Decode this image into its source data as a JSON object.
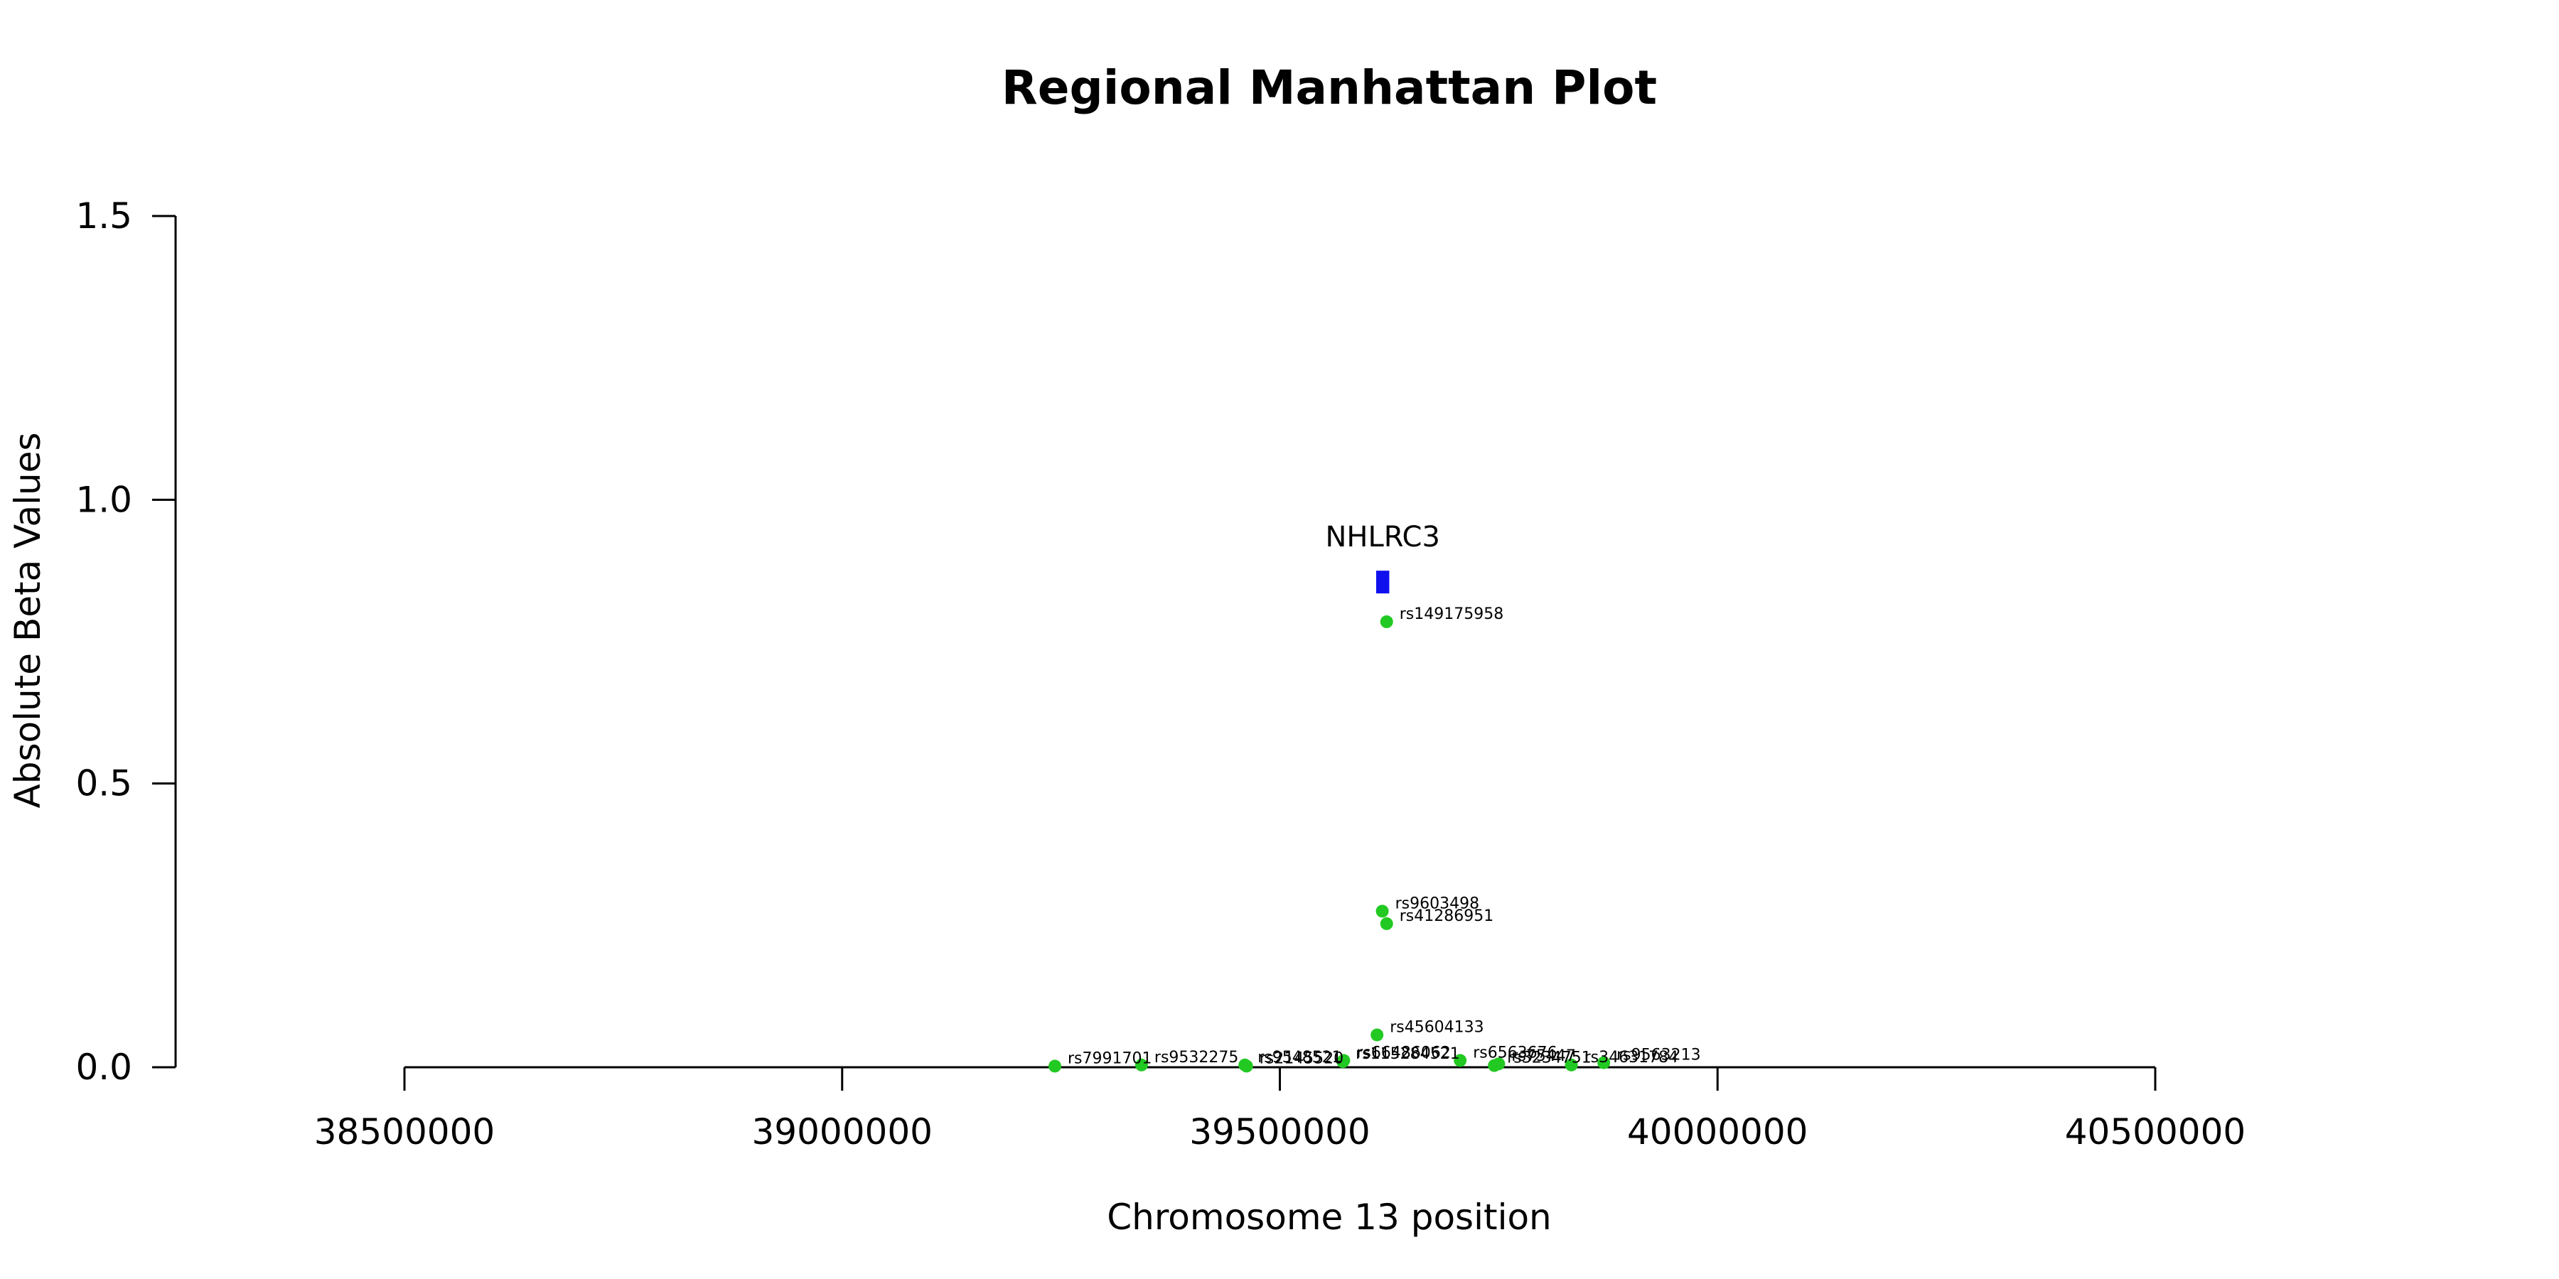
{
  "chart_data": {
    "type": "scatter",
    "title": "Regional Manhattan Plot",
    "xlabel": "Chromosome 13 position",
    "ylabel": "Absolute Beta Values",
    "xlim": [
      38500000,
      40500000
    ],
    "ylim": [
      0,
      1.5
    ],
    "x_ticks": [
      "38500000",
      "39000000",
      "39500000",
      "40000000",
      "40500000"
    ],
    "y_ticks": [
      "0.0",
      "0.5",
      "1.0",
      "1.5"
    ],
    "grid": false,
    "point_color": "#22c922",
    "gene_color": "#1010ee",
    "gene": {
      "name": "NHLRC3",
      "start": 39610000,
      "end": 39625000,
      "y": 0.855
    },
    "points": [
      {
        "id": "rs149175958",
        "x": 39622000,
        "y": 0.785
      },
      {
        "id": "rs9603498",
        "x": 39617000,
        "y": 0.275
      },
      {
        "id": "rs41286951",
        "x": 39622000,
        "y": 0.253
      },
      {
        "id": "rs45604133",
        "x": 39611000,
        "y": 0.057
      },
      {
        "id": "rs6563676",
        "x": 39706000,
        "y": 0.012
      },
      {
        "id": "rs66486062",
        "x": 39573000,
        "y": 0.012
      },
      {
        "id": "rs115284521",
        "x": 39572000,
        "y": 0.01
      },
      {
        "id": "rs7991701",
        "x": 39243000,
        "y": 0.002
      },
      {
        "id": "rs9532275",
        "x": 39342000,
        "y": 0.004
      },
      {
        "id": "rs9548521",
        "x": 39460000,
        "y": 0.004
      },
      {
        "id": "rs2145520",
        "x": 39462000,
        "y": 0.002
      },
      {
        "id": "rs75447",
        "x": 39750000,
        "y": 0.006
      },
      {
        "id": "rs3234751",
        "x": 39745000,
        "y": 0.003
      },
      {
        "id": "rs9563213",
        "x": 39870000,
        "y": 0.008
      },
      {
        "id": "rs34631784",
        "x": 39833000,
        "y": 0.004
      }
    ]
  }
}
